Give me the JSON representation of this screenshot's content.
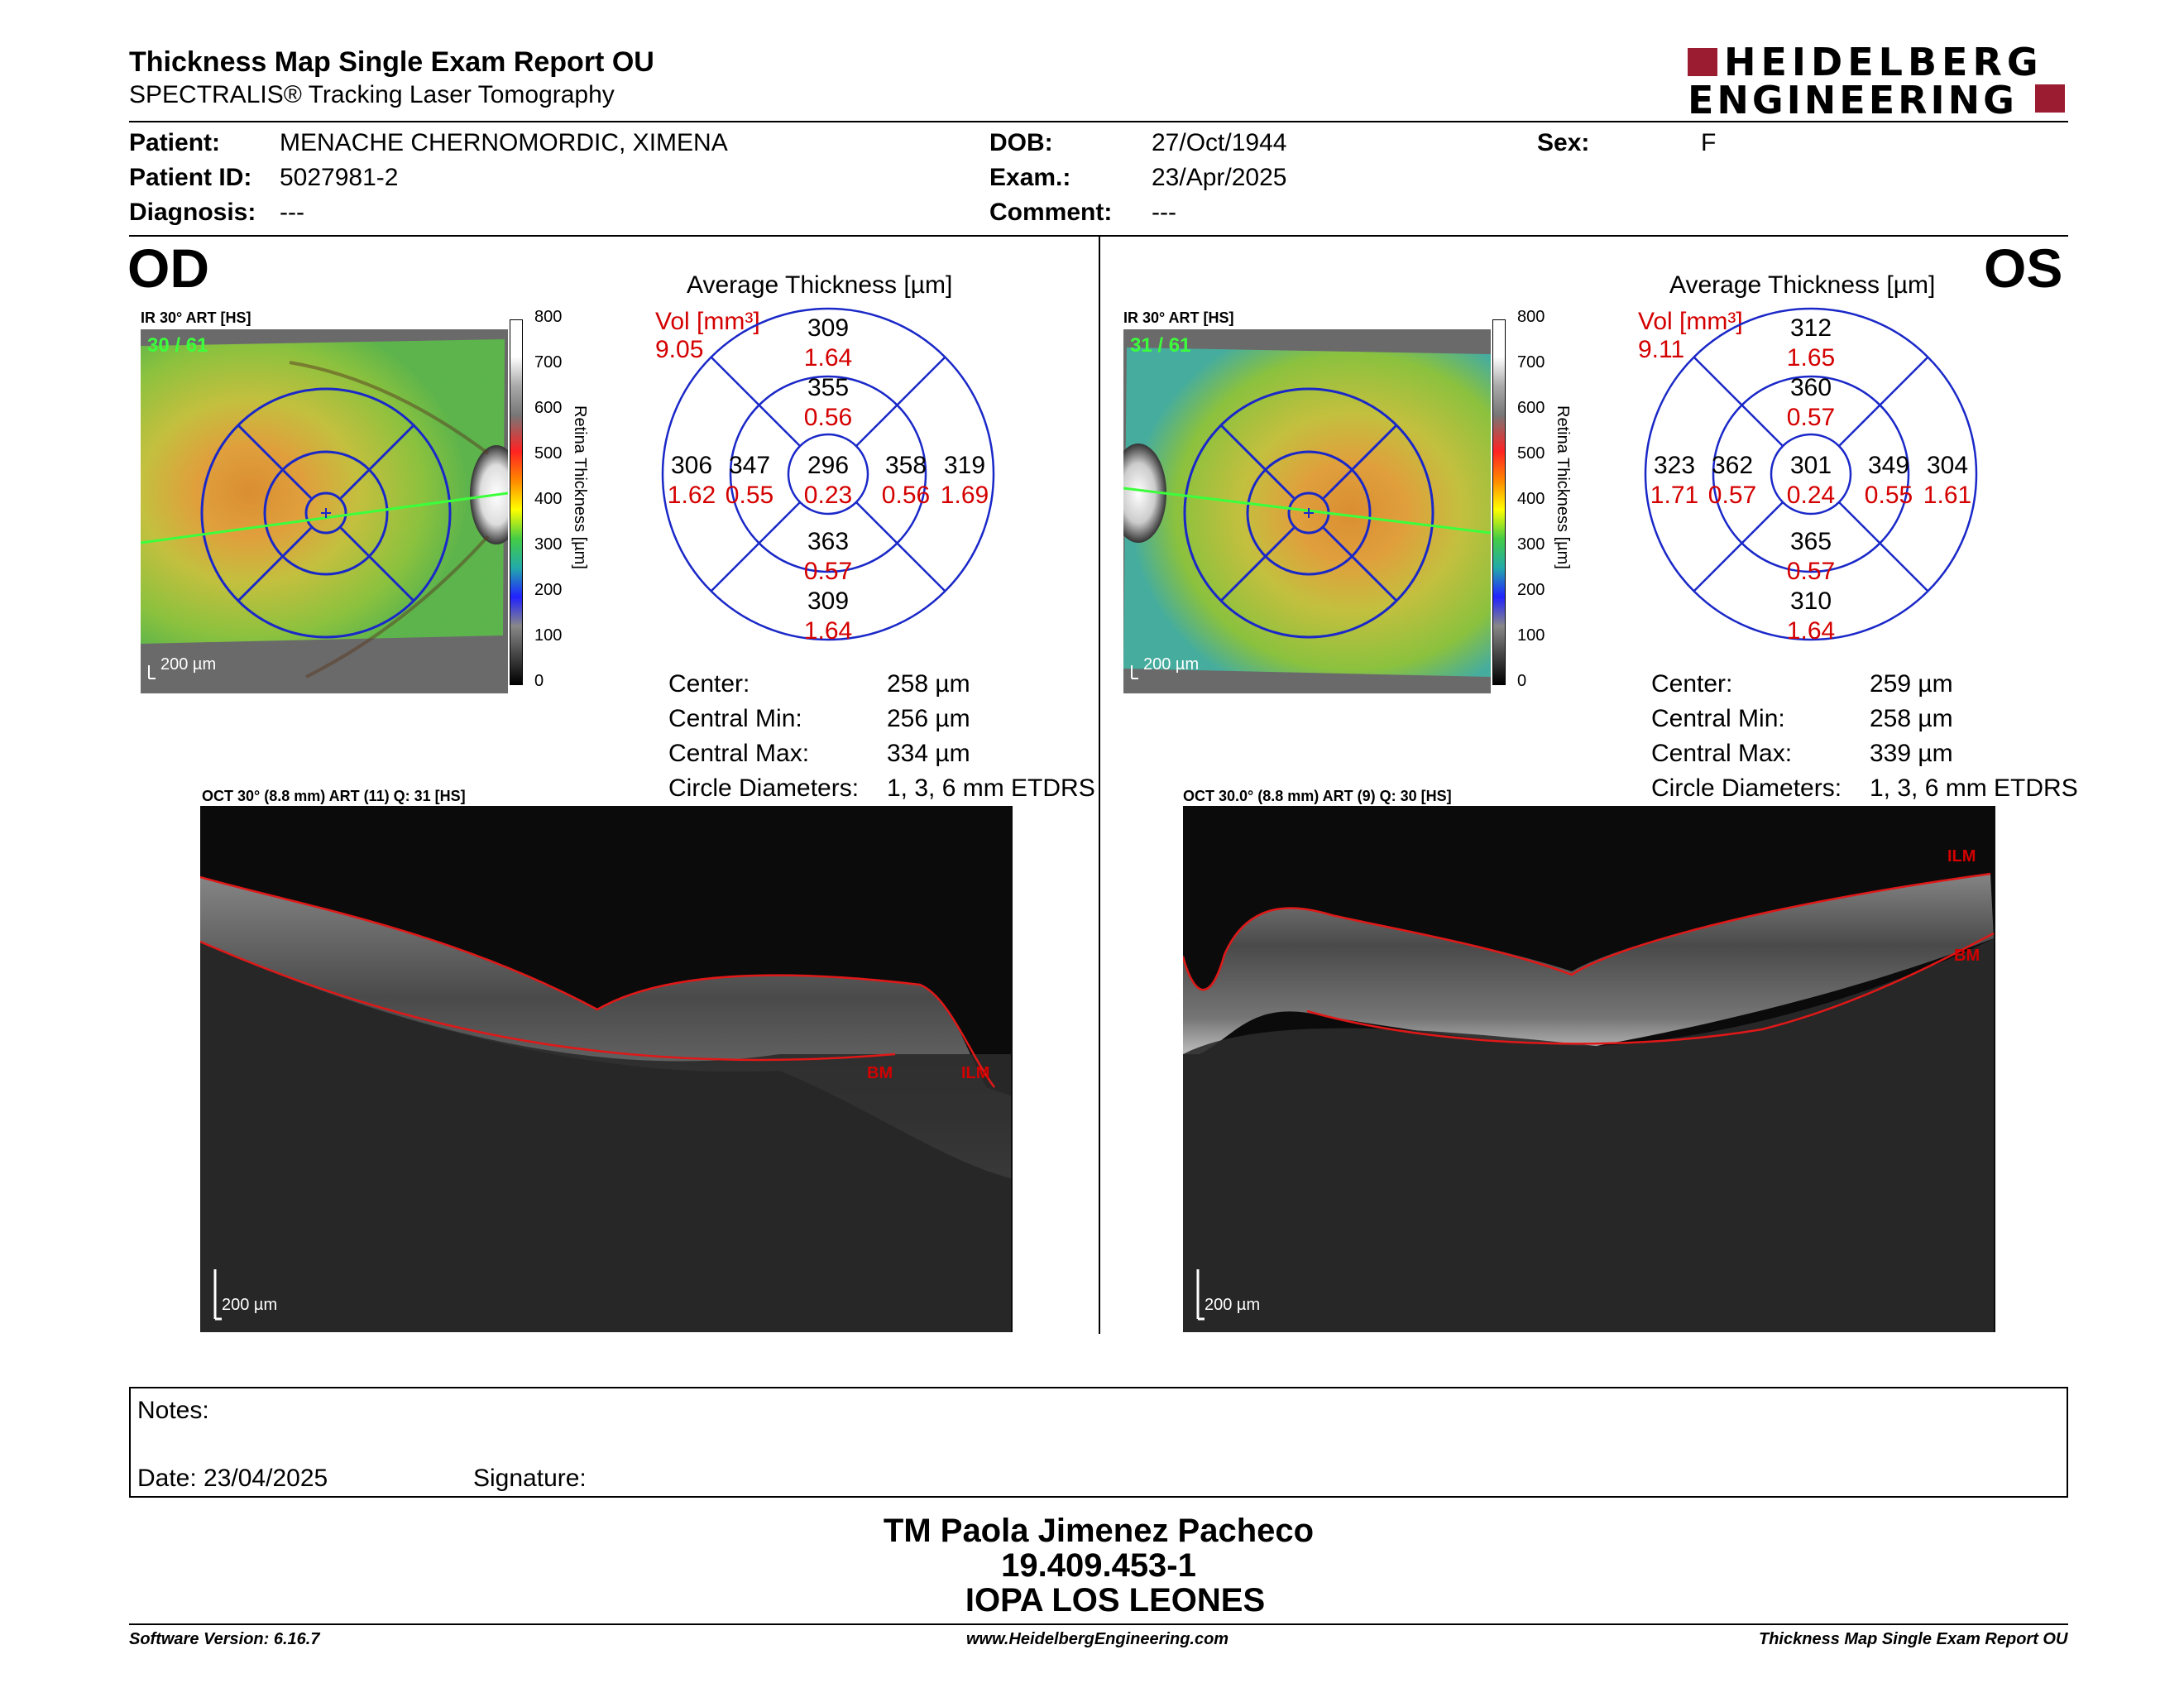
{
  "header": {
    "title": "Thickness Map Single Exam Report OU",
    "subtitle": "SPECTRALIS® Tracking Laser Tomography",
    "logo_line1": "HEIDELBERG",
    "logo_line2": "ENGINEERING",
    "brand_color": "#9b1b30"
  },
  "patient": {
    "patient_label": "Patient:",
    "patient_value": "MENACHE CHERNOMORDIC, XIMENA",
    "id_label": "Patient ID:",
    "id_value": "5027981-2",
    "diagnosis_label": "Diagnosis:",
    "diagnosis_value": "---",
    "dob_label": "DOB:",
    "dob_value": "27/Oct/1944",
    "exam_label": "Exam.:",
    "exam_value": "23/Apr/2025",
    "comment_label": "Comment:",
    "comment_value": "---",
    "sex_label": "Sex:",
    "sex_value": "F"
  },
  "colorbar": {
    "ticks": [
      "800",
      "700",
      "600",
      "500",
      "400",
      "300",
      "200",
      "100",
      "0"
    ],
    "label": "Retina  Thickness [µm]"
  },
  "od": {
    "eye": "OD",
    "ir_label": "IR 30° ART [HS]",
    "frame_count": "30 / 61",
    "scale": "200 µm",
    "avg_title": "Average Thickness [µm]",
    "vol_label": "Vol [mm³]",
    "vol_value": "9.05",
    "sectors": {
      "outer_top": [
        "309",
        "1.64"
      ],
      "inner_top": [
        "355",
        "0.56"
      ],
      "outer_left": [
        "306",
        "1.62"
      ],
      "inner_left": [
        "347",
        "0.55"
      ],
      "center": [
        "296",
        "0.23"
      ],
      "inner_right": [
        "358",
        "0.56"
      ],
      "outer_right": [
        "319",
        "1.69"
      ],
      "inner_bottom": [
        "363",
        "0.57"
      ],
      "outer_bottom": [
        "309",
        "1.64"
      ]
    },
    "stats": [
      {
        "label": "Center:",
        "value": "258 µm"
      },
      {
        "label": "Central Min:",
        "value": "256 µm"
      },
      {
        "label": "Central Max:",
        "value": "334 µm"
      },
      {
        "label": "Circle Diameters:",
        "value": "1, 3, 6 mm ETDRS"
      }
    ],
    "oct_label": "OCT 30° (8.8 mm) ART (11) Q: 31 [HS]",
    "oct_scale": "200 µm",
    "tag_bm": "BM",
    "tag_ilm": "ILM"
  },
  "os": {
    "eye": "OS",
    "ir_label": "IR 30° ART [HS]",
    "frame_count": "31 / 61",
    "scale": "200 µm",
    "avg_title": "Average Thickness [µm]",
    "vol_label": "Vol [mm³]",
    "vol_value": "9.11",
    "sectors": {
      "outer_top": [
        "312",
        "1.65"
      ],
      "inner_top": [
        "360",
        "0.57"
      ],
      "outer_left": [
        "323",
        "1.71"
      ],
      "inner_left": [
        "362",
        "0.57"
      ],
      "center": [
        "301",
        "0.24"
      ],
      "inner_right": [
        "349",
        "0.55"
      ],
      "outer_right": [
        "304",
        "1.61"
      ],
      "inner_bottom": [
        "365",
        "0.57"
      ],
      "outer_bottom": [
        "310",
        "1.64"
      ]
    },
    "stats": [
      {
        "label": "Center:",
        "value": "259 µm"
      },
      {
        "label": "Central Min:",
        "value": "258 µm"
      },
      {
        "label": "Central Max:",
        "value": "339 µm"
      },
      {
        "label": "Circle Diameters:",
        "value": "1, 3, 6 mm ETDRS"
      }
    ],
    "oct_label": "OCT 30.0° (8.8 mm) ART (9) Q: 30 [HS]",
    "oct_scale": "200 µm",
    "tag_bm": "BM",
    "tag_ilm": "ILM"
  },
  "notes": {
    "notes_label": "Notes:",
    "date_label": "Date: 23/04/2025",
    "signature_label": "Signature:"
  },
  "signer": {
    "name": "TM Paola Jimenez Pacheco",
    "id": "19.409.453-1",
    "org": "IOPA LOS LEONES"
  },
  "footer": {
    "software": "Software Version: 6.16.7",
    "url": "www.HeidelbergEngineering.com",
    "report": "Thickness Map Single Exam Report OU"
  }
}
